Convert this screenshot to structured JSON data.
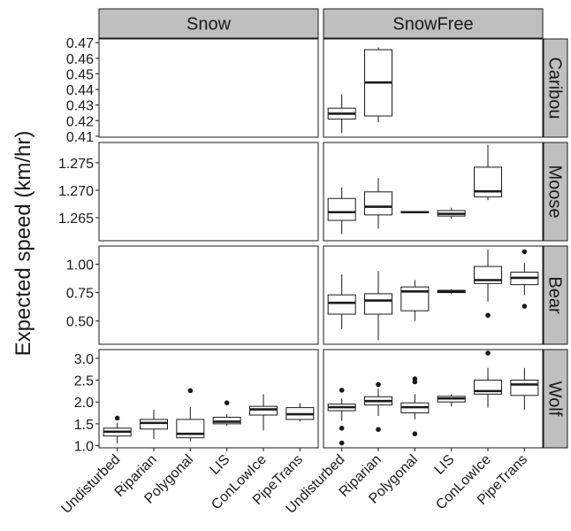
{
  "chart_data": {
    "type": "boxplot",
    "ylabel": "Expected speed (km/hr)",
    "xlabel": "",
    "columns": [
      "Snow",
      "SnowFree"
    ],
    "rows": [
      "Caribou",
      "Moose",
      "Bear",
      "Wolf"
    ],
    "categories": [
      "Undisturbed",
      "Riparian",
      "Polygonal",
      "LIS",
      "ConLowIce",
      "PipeTrans"
    ],
    "grid": false,
    "colors": {
      "strip_fill": "#bfbfbf",
      "box_fill": "#ffffff",
      "line": "#1a1a1a"
    },
    "panels": [
      {
        "row": "Caribou",
        "column": "Snow",
        "boxes": []
      },
      {
        "row": "Caribou",
        "column": "SnowFree",
        "boxes": [
          {
            "category": "Undisturbed",
            "min": 0.412,
            "q1": 0.421,
            "median": 0.4245,
            "q3": 0.428,
            "max": 0.437,
            "outliers": []
          },
          {
            "category": "Riparian",
            "min": 0.419,
            "q1": 0.423,
            "median": 0.4445,
            "q3": 0.4655,
            "max": 0.467,
            "outliers": []
          }
        ]
      },
      {
        "row": "Moose",
        "column": "Snow",
        "boxes": []
      },
      {
        "row": "Moose",
        "column": "SnowFree",
        "boxes": [
          {
            "category": "Undisturbed",
            "min": 1.262,
            "q1": 1.2645,
            "median": 1.266,
            "q3": 1.2685,
            "max": 1.2705,
            "outliers": []
          },
          {
            "category": "Riparian",
            "min": 1.263,
            "q1": 1.2655,
            "median": 1.267,
            "q3": 1.2697,
            "max": 1.2722,
            "outliers": []
          },
          {
            "category": "Polygonal",
            "min": 1.2659,
            "q1": 1.2659,
            "median": 1.266,
            "q3": 1.2661,
            "max": 1.2661,
            "outliers": []
          },
          {
            "category": "LIS",
            "min": 1.2648,
            "q1": 1.2653,
            "median": 1.2657,
            "q3": 1.2663,
            "max": 1.2668,
            "outliers": []
          },
          {
            "category": "ConLowIce",
            "min": 1.2682,
            "q1": 1.2688,
            "median": 1.2698,
            "q3": 1.2742,
            "max": 1.2783,
            "outliers": []
          },
          {
            "category": "PipeTrans",
            "min": null,
            "q1": null,
            "median": null,
            "q3": null,
            "max": null,
            "outliers": []
          }
        ]
      },
      {
        "row": "Bear",
        "column": "Snow",
        "boxes": []
      },
      {
        "row": "Bear",
        "column": "SnowFree",
        "boxes": [
          {
            "category": "Undisturbed",
            "min": 0.43,
            "q1": 0.56,
            "median": 0.66,
            "q3": 0.73,
            "max": 0.91,
            "outliers": []
          },
          {
            "category": "Riparian",
            "min": 0.33,
            "q1": 0.56,
            "median": 0.68,
            "q3": 0.74,
            "max": 0.94,
            "outliers": []
          },
          {
            "category": "Polygonal",
            "min": 0.5,
            "q1": 0.59,
            "median": 0.76,
            "q3": 0.8,
            "max": 0.86,
            "outliers": []
          },
          {
            "category": "LIS",
            "min": 0.74,
            "q1": 0.75,
            "median": 0.76,
            "q3": 0.77,
            "max": 0.78,
            "outliers": []
          },
          {
            "category": "ConLowIce",
            "min": 0.67,
            "q1": 0.83,
            "median": 0.86,
            "q3": 0.98,
            "max": 1.13,
            "outliers": [
              0.55
            ]
          },
          {
            "category": "PipeTrans",
            "min": 0.73,
            "q1": 0.82,
            "median": 0.88,
            "q3": 0.93,
            "max": 1.01,
            "outliers": [
              1.11,
              0.63
            ]
          }
        ]
      },
      {
        "row": "Wolf",
        "column": "Snow",
        "boxes": [
          {
            "category": "Undisturbed",
            "min": 1.05,
            "q1": 1.22,
            "median": 1.32,
            "q3": 1.4,
            "max": 1.52,
            "outliers": [
              1.63
            ]
          },
          {
            "category": "Riparian",
            "min": 1.15,
            "q1": 1.38,
            "median": 1.52,
            "q3": 1.6,
            "max": 1.82,
            "outliers": []
          },
          {
            "category": "Polygonal",
            "min": 1.1,
            "q1": 1.18,
            "median": 1.27,
            "q3": 1.6,
            "max": 1.88,
            "outliers": [
              2.26
            ]
          },
          {
            "category": "LIS",
            "min": 1.45,
            "q1": 1.5,
            "median": 1.55,
            "q3": 1.65,
            "max": 1.72,
            "outliers": [
              1.98
            ]
          },
          {
            "category": "ConLowIce",
            "min": 1.35,
            "q1": 1.7,
            "median": 1.83,
            "q3": 1.9,
            "max": 2.18,
            "outliers": []
          },
          {
            "category": "PipeTrans",
            "min": 1.55,
            "q1": 1.6,
            "median": 1.72,
            "q3": 1.87,
            "max": 1.97,
            "outliers": []
          }
        ]
      },
      {
        "row": "Wolf",
        "column": "SnowFree",
        "boxes": [
          {
            "category": "Undisturbed",
            "min": 1.57,
            "q1": 1.8,
            "median": 1.88,
            "q3": 1.95,
            "max": 2.08,
            "outliers": [
              2.27,
              1.4,
              1.06
            ]
          },
          {
            "category": "Riparian",
            "min": 1.68,
            "q1": 1.93,
            "median": 2.02,
            "q3": 2.12,
            "max": 2.3,
            "outliers": [
              2.4,
              1.37
            ]
          },
          {
            "category": "Polygonal",
            "min": 1.6,
            "q1": 1.75,
            "median": 1.88,
            "q3": 1.98,
            "max": 2.18,
            "outliers": [
              2.53,
              2.46,
              1.27
            ]
          },
          {
            "category": "LIS",
            "min": 1.9,
            "q1": 2.0,
            "median": 2.08,
            "q3": 2.13,
            "max": 2.17,
            "outliers": []
          },
          {
            "category": "ConLowIce",
            "min": 1.87,
            "q1": 2.18,
            "median": 2.25,
            "q3": 2.5,
            "max": 2.78,
            "outliers": [
              3.12
            ]
          },
          {
            "category": "PipeTrans",
            "min": 1.82,
            "q1": 2.15,
            "median": 2.4,
            "q3": 2.5,
            "max": 2.78,
            "outliers": []
          }
        ]
      }
    ],
    "y_axes": [
      {
        "row": "Caribou",
        "ylim": [
          0.4094,
          0.4724
        ],
        "ticks": [
          0.41,
          0.42,
          0.43,
          0.44,
          0.45,
          0.46,
          0.47
        ],
        "tick_labels": [
          "0.41",
          "0.42",
          "0.43",
          "0.44",
          "0.45",
          "0.46",
          "0.47"
        ]
      },
      {
        "row": "Moose",
        "ylim": [
          1.2608,
          1.2787
        ],
        "ticks": [
          1.265,
          1.27,
          1.275
        ],
        "tick_labels": [
          "1.265",
          "1.270",
          "1.275"
        ]
      },
      {
        "row": "Bear",
        "ylim": [
          0.295,
          1.16
        ],
        "ticks": [
          0.5,
          0.75,
          1.0
        ],
        "tick_labels": [
          "0.50",
          "0.75",
          "1.00"
        ]
      },
      {
        "row": "Wolf",
        "ylim": [
          0.95,
          3.2
        ],
        "ticks": [
          1.0,
          1.5,
          2.0,
          2.5,
          3.0
        ],
        "tick_labels": [
          "1.0",
          "1.5",
          "2.0",
          "2.5",
          "3.0"
        ]
      }
    ]
  }
}
